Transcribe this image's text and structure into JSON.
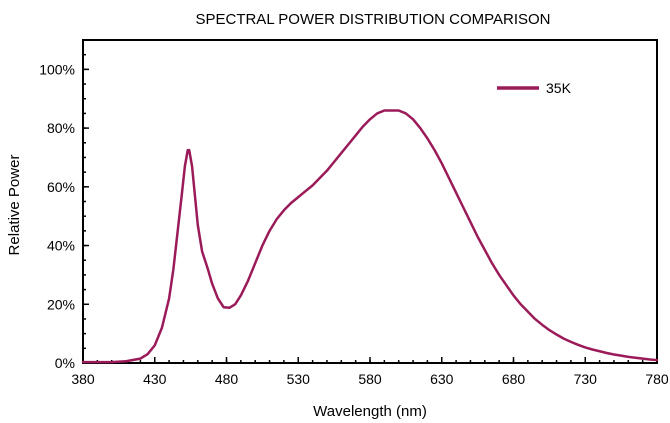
{
  "chart_data": {
    "type": "line",
    "title": "SPECTRAL POWER DISTRIBUTION COMPARISON",
    "xlabel": "Wavelength (nm)",
    "ylabel": "Relative Power",
    "xlim": [
      380,
      780
    ],
    "ylim": [
      0,
      110
    ],
    "x_ticks": [
      380,
      430,
      480,
      530,
      580,
      630,
      680,
      730,
      780
    ],
    "y_ticks": [
      0,
      20,
      40,
      60,
      80,
      100
    ],
    "y_tick_format": "percent",
    "grid": false,
    "legend_position": "top-right",
    "series": [
      {
        "name": "35K",
        "color": "#9b1b5a",
        "points": [
          [
            380,
            0.3
          ],
          [
            400,
            0.3
          ],
          [
            410,
            0.6
          ],
          [
            420,
            1.5
          ],
          [
            425,
            3
          ],
          [
            430,
            6
          ],
          [
            435,
            12
          ],
          [
            440,
            22
          ],
          [
            443,
            32
          ],
          [
            446,
            45
          ],
          [
            449,
            58
          ],
          [
            451,
            67
          ],
          [
            453,
            72.5
          ],
          [
            454,
            72.5
          ],
          [
            456,
            67
          ],
          [
            458,
            57
          ],
          [
            460,
            47
          ],
          [
            463,
            38
          ],
          [
            467,
            32
          ],
          [
            470,
            27
          ],
          [
            474,
            22
          ],
          [
            478,
            19
          ],
          [
            482,
            18.8
          ],
          [
            486,
            20
          ],
          [
            490,
            23
          ],
          [
            495,
            28
          ],
          [
            500,
            34
          ],
          [
            505,
            40
          ],
          [
            510,
            45
          ],
          [
            515,
            49
          ],
          [
            520,
            52
          ],
          [
            525,
            54.5
          ],
          [
            530,
            56.5
          ],
          [
            535,
            58.5
          ],
          [
            540,
            60.5
          ],
          [
            545,
            63
          ],
          [
            550,
            65.5
          ],
          [
            555,
            68.5
          ],
          [
            560,
            71.5
          ],
          [
            565,
            74.5
          ],
          [
            570,
            77.5
          ],
          [
            575,
            80.5
          ],
          [
            580,
            83
          ],
          [
            585,
            85
          ],
          [
            590,
            86
          ],
          [
            595,
            86
          ],
          [
            600,
            86
          ],
          [
            605,
            85
          ],
          [
            610,
            83
          ],
          [
            615,
            80
          ],
          [
            620,
            76.5
          ],
          [
            625,
            72.5
          ],
          [
            630,
            68
          ],
          [
            635,
            63
          ],
          [
            640,
            58
          ],
          [
            645,
            53
          ],
          [
            650,
            48
          ],
          [
            655,
            43
          ],
          [
            660,
            38.5
          ],
          [
            665,
            34
          ],
          [
            670,
            30
          ],
          [
            675,
            26.5
          ],
          [
            680,
            23
          ],
          [
            685,
            20
          ],
          [
            690,
            17.5
          ],
          [
            695,
            15
          ],
          [
            700,
            13
          ],
          [
            705,
            11.2
          ],
          [
            710,
            9.7
          ],
          [
            715,
            8.3
          ],
          [
            720,
            7.2
          ],
          [
            725,
            6.2
          ],
          [
            730,
            5.3
          ],
          [
            735,
            4.6
          ],
          [
            740,
            4
          ],
          [
            745,
            3.4
          ],
          [
            750,
            2.9
          ],
          [
            755,
            2.5
          ],
          [
            760,
            2.1
          ],
          [
            765,
            1.8
          ],
          [
            770,
            1.5
          ],
          [
            775,
            1.2
          ],
          [
            780,
            1
          ]
        ]
      }
    ]
  }
}
